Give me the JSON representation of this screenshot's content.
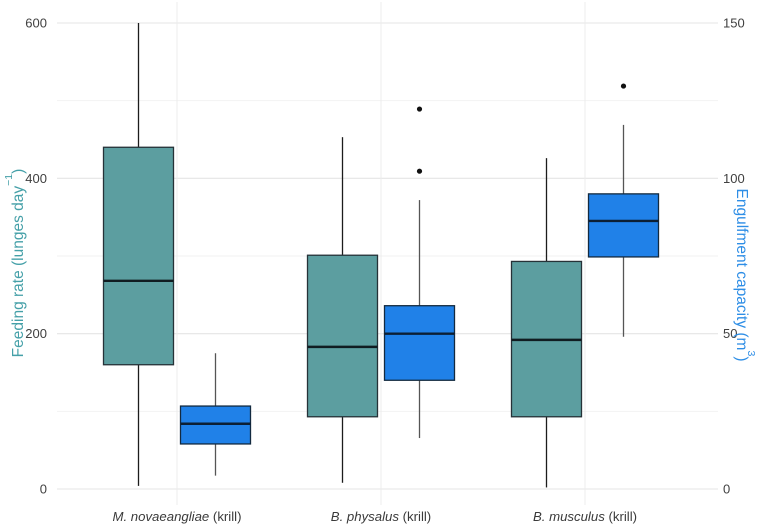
{
  "figure": {
    "background": "#ffffff"
  },
  "chart_data": {
    "type": "boxplot",
    "orientation": "vertical",
    "grid": {
      "horizontal_major": [
        0,
        200,
        400,
        600
      ],
      "horizontal_minor": [
        100,
        300,
        500
      ],
      "vertical_at_categories": true,
      "major_color": "#e4e4e4",
      "minor_color": "#f1f1f1",
      "vertical_color": "#ececec"
    },
    "categories": [
      {
        "species": "M. novaeangliae",
        "suffix": " (krill)"
      },
      {
        "species": "B. physalus",
        "suffix": " (krill)"
      },
      {
        "species": "B. musculus",
        "suffix": " (krill)"
      }
    ],
    "category_label_color": "#3a3a3a",
    "axes": {
      "left": {
        "title_main": "Feeding rate (lunges day",
        "title_sup": "−1",
        "title_end": ")",
        "range": [
          0,
          600
        ],
        "ticks": [
          0,
          200,
          400,
          600
        ],
        "title_color": "#45a0a8",
        "tick_color": "#404040"
      },
      "right": {
        "title_main": "Engulfment capacity (m",
        "title_sup": "3",
        "title_end": ")",
        "range": [
          0,
          150
        ],
        "ticks": [
          0,
          50,
          100,
          150
        ],
        "title_color": "#2e8ee6",
        "tick_color": "#404040"
      }
    },
    "series": [
      {
        "name": "Feeding rate",
        "axis": "left",
        "fill": "#5c9ea0",
        "stroke": "#263238",
        "median_color": "#101c21",
        "whisker_color": "#1c1c1c",
        "outlier_color": "#111111",
        "boxes": [
          {
            "min": 4,
            "q1": 160,
            "median": 268,
            "q3": 440,
            "max": 600,
            "outliers": []
          },
          {
            "min": 8,
            "q1": 93,
            "median": 183,
            "q3": 301,
            "max": 453,
            "outliers": []
          },
          {
            "min": 2,
            "q1": 93,
            "median": 192,
            "q3": 293,
            "max": 426,
            "outliers": []
          }
        ]
      },
      {
        "name": "Engulfment capacity",
        "axis": "right",
        "fill": "#2081e8",
        "stroke": "#132a40",
        "median_color": "#0c1f33",
        "whisker_color": "#555555",
        "outlier_color": "#111111",
        "boxes": [
          {
            "min": 4.3,
            "q1": 14.5,
            "median": 21,
            "q3": 26.7,
            "max": 43.7,
            "outliers": []
          },
          {
            "min": 16.4,
            "q1": 35,
            "median": 50,
            "q3": 59,
            "max": 93,
            "outliers": [
              102.3,
              122.3
            ]
          },
          {
            "min": 49,
            "q1": 74.7,
            "median": 86.3,
            "q3": 95,
            "max": 117.2,
            "outliers": [
              129.7
            ]
          }
        ]
      }
    ]
  }
}
